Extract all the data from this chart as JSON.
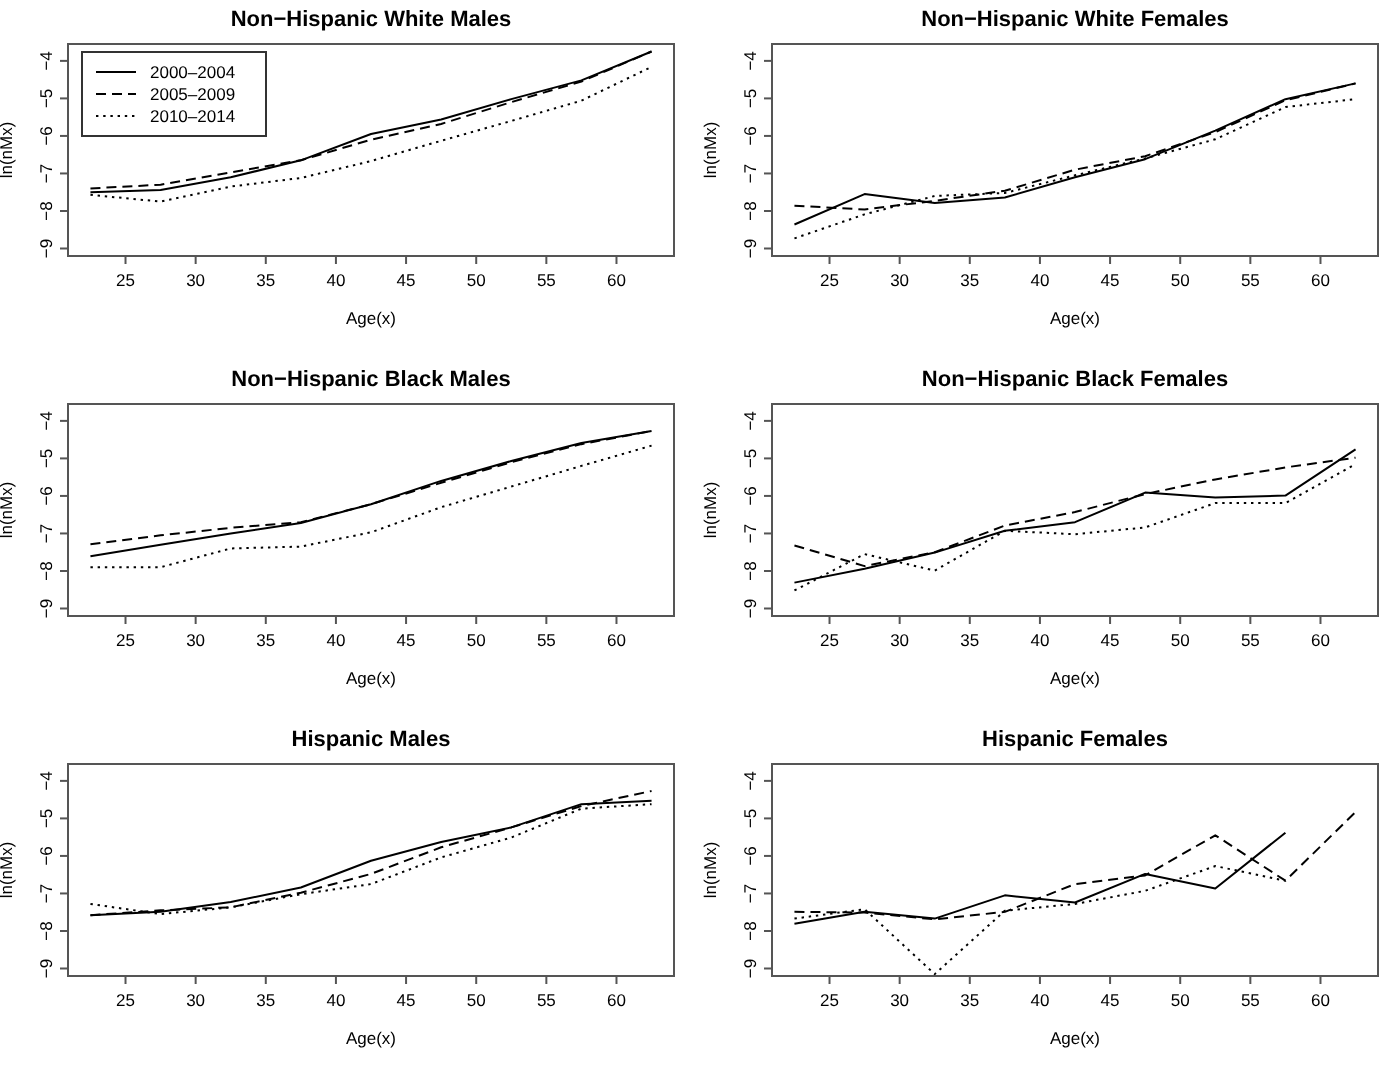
{
  "chart_data": [
    {
      "type": "line",
      "title": "Non−Hispanic White Males",
      "xlabel": "Age(x)",
      "ylabel": "ln(nMx)",
      "x": [
        22.5,
        27.5,
        32.5,
        37.5,
        42.5,
        47.5,
        52.5,
        57.5,
        62.5
      ],
      "xlim": [
        20.9,
        64.1
      ],
      "xticks": [
        25,
        30,
        35,
        40,
        45,
        50,
        55,
        60
      ],
      "ylim": [
        -9.2,
        -3.55
      ],
      "yticks": [
        -9,
        -8,
        -7,
        -6,
        -5,
        -4
      ],
      "legend": "top left",
      "grid": false,
      "series": [
        {
          "name": "2000–2004",
          "color": "#000000",
          "line_style": "solid",
          "values": [
            -7.5,
            -7.44,
            -7.1,
            -6.65,
            -5.95,
            -5.56,
            -5.02,
            -4.52,
            -3.75
          ]
        },
        {
          "name": "2005–2009",
          "color": "#000000",
          "line_style": "dashed",
          "values": [
            -7.4,
            -7.3,
            -6.97,
            -6.65,
            -6.1,
            -5.68,
            -5.1,
            -4.55,
            -3.75
          ]
        },
        {
          "name": "2010–2014",
          "color": "#000000",
          "line_style": "dotted",
          "values": [
            -7.57,
            -7.75,
            -7.35,
            -7.12,
            -6.67,
            -6.13,
            -5.6,
            -5.06,
            -4.16
          ]
        }
      ]
    },
    {
      "type": "line",
      "title": "Non−Hispanic White Females",
      "xlabel": "Age(x)",
      "ylabel": "ln(nMx)",
      "x": [
        22.5,
        27.5,
        32.5,
        37.5,
        42.5,
        47.5,
        52.5,
        57.5,
        62.5
      ],
      "xlim": [
        20.9,
        64.1
      ],
      "xticks": [
        25,
        30,
        35,
        40,
        45,
        50,
        55,
        60
      ],
      "ylim": [
        -9.2,
        -3.55
      ],
      "yticks": [
        -9,
        -8,
        -7,
        -6,
        -5,
        -4
      ],
      "grid": false,
      "series": [
        {
          "color": "#000000",
          "line_style": "solid",
          "values": [
            -8.36,
            -7.55,
            -7.79,
            -7.64,
            -7.1,
            -6.62,
            -5.86,
            -5.02,
            -4.6
          ]
        },
        {
          "color": "#000000",
          "line_style": "dashed",
          "values": [
            -7.86,
            -7.96,
            -7.73,
            -7.46,
            -6.9,
            -6.54,
            -5.9,
            -5.05,
            -4.6
          ]
        },
        {
          "color": "#000000",
          "line_style": "dotted",
          "values": [
            -8.73,
            -8.09,
            -7.6,
            -7.52,
            -7.05,
            -6.6,
            -6.09,
            -5.23,
            -5.02
          ]
        }
      ]
    },
    {
      "type": "line",
      "title": "Non−Hispanic Black Males",
      "xlabel": "Age(x)",
      "ylabel": "ln(nMx)",
      "x": [
        22.5,
        27.5,
        32.5,
        37.5,
        42.5,
        47.5,
        52.5,
        57.5,
        62.5
      ],
      "xlim": [
        20.9,
        64.1
      ],
      "xticks": [
        25,
        30,
        35,
        40,
        45,
        50,
        55,
        60
      ],
      "ylim": [
        -9.2,
        -3.55
      ],
      "yticks": [
        -9,
        -8,
        -7,
        -6,
        -5,
        -4
      ],
      "grid": false,
      "series": [
        {
          "color": "#000000",
          "line_style": "solid",
          "values": [
            -7.61,
            -7.3,
            -7.0,
            -6.72,
            -6.22,
            -5.6,
            -5.07,
            -4.59,
            -4.27
          ]
        },
        {
          "color": "#000000",
          "line_style": "dashed",
          "values": [
            -7.29,
            -7.05,
            -6.85,
            -6.7,
            -6.22,
            -5.65,
            -5.1,
            -4.62,
            -4.27
          ]
        },
        {
          "color": "#000000",
          "line_style": "dotted",
          "values": [
            -7.9,
            -7.9,
            -7.4,
            -7.35,
            -6.97,
            -6.3,
            -5.75,
            -5.2,
            -4.66
          ]
        }
      ]
    },
    {
      "type": "line",
      "title": "Non−Hispanic Black Females",
      "xlabel": "Age(x)",
      "ylabel": "ln(nMx)",
      "x": [
        22.5,
        27.5,
        32.5,
        37.5,
        42.5,
        47.5,
        52.5,
        57.5,
        62.5
      ],
      "xlim": [
        20.9,
        64.1
      ],
      "xticks": [
        25,
        30,
        35,
        40,
        45,
        50,
        55,
        60
      ],
      "ylim": [
        -9.2,
        -3.55
      ],
      "yticks": [
        -9,
        -8,
        -7,
        -6,
        -5,
        -4
      ],
      "grid": false,
      "series": [
        {
          "color": "#000000",
          "line_style": "solid",
          "values": [
            -8.31,
            -7.94,
            -7.51,
            -6.93,
            -6.7,
            -5.91,
            -6.04,
            -5.99,
            -4.76
          ]
        },
        {
          "color": "#000000",
          "line_style": "dashed",
          "values": [
            -7.32,
            -7.87,
            -7.5,
            -6.79,
            -6.43,
            -5.95,
            -5.56,
            -5.24,
            -4.98
          ]
        },
        {
          "color": "#000000",
          "line_style": "dotted",
          "values": [
            -8.52,
            -7.55,
            -7.99,
            -6.93,
            -7.02,
            -6.84,
            -6.19,
            -6.19,
            -5.15
          ]
        }
      ]
    },
    {
      "type": "line",
      "title": "Hispanic Males",
      "xlabel": "Age(x)",
      "ylabel": "ln(nMx)",
      "x": [
        22.5,
        27.5,
        32.5,
        37.5,
        42.5,
        47.5,
        52.5,
        57.5,
        62.5
      ],
      "xlim": [
        20.9,
        64.1
      ],
      "xticks": [
        25,
        30,
        35,
        40,
        45,
        50,
        55,
        60
      ],
      "ylim": [
        -9.2,
        -3.55
      ],
      "yticks": [
        -9,
        -8,
        -7,
        -6,
        -5,
        -4
      ],
      "grid": false,
      "series": [
        {
          "color": "#000000",
          "line_style": "solid",
          "values": [
            -7.58,
            -7.49,
            -7.23,
            -6.84,
            -6.13,
            -5.63,
            -5.24,
            -4.62,
            -4.53
          ]
        },
        {
          "color": "#000000",
          "line_style": "dashed",
          "values": [
            -7.58,
            -7.45,
            -7.37,
            -6.98,
            -6.48,
            -5.77,
            -5.24,
            -4.67,
            -4.27
          ]
        },
        {
          "color": "#000000",
          "line_style": "dotted",
          "values": [
            -7.28,
            -7.55,
            -7.37,
            -7.02,
            -6.75,
            -6.04,
            -5.51,
            -4.74,
            -4.62
          ]
        }
      ]
    },
    {
      "type": "line",
      "title": "Hispanic Females",
      "xlabel": "Age(x)",
      "ylabel": "ln(nMx)",
      "x": [
        22.5,
        27.5,
        32.5,
        37.5,
        42.5,
        47.5,
        52.5,
        57.5,
        62.5
      ],
      "xlim": [
        20.9,
        64.1
      ],
      "xticks": [
        25,
        30,
        35,
        40,
        45,
        50,
        55,
        60
      ],
      "ylim": [
        -9.2,
        -3.55
      ],
      "yticks": [
        -9,
        -8,
        -7,
        -6,
        -5,
        -4
      ],
      "grid": false,
      "series": [
        {
          "color": "#000000",
          "line_style": "solid",
          "values": [
            -7.81,
            -7.49,
            -7.67,
            -7.05,
            -7.24,
            -6.48,
            -6.87,
            -5.38,
            null
          ]
        },
        {
          "color": "#000000",
          "line_style": "dashed",
          "values": [
            -7.49,
            -7.51,
            -7.69,
            -7.49,
            -6.75,
            -6.52,
            -5.45,
            -6.66,
            -4.83
          ]
        },
        {
          "color": "#000000",
          "line_style": "dotted",
          "values": [
            -7.67,
            -7.42,
            -9.15,
            -7.46,
            -7.28,
            -6.93,
            -6.27,
            -6.66,
            null
          ]
        }
      ]
    }
  ]
}
